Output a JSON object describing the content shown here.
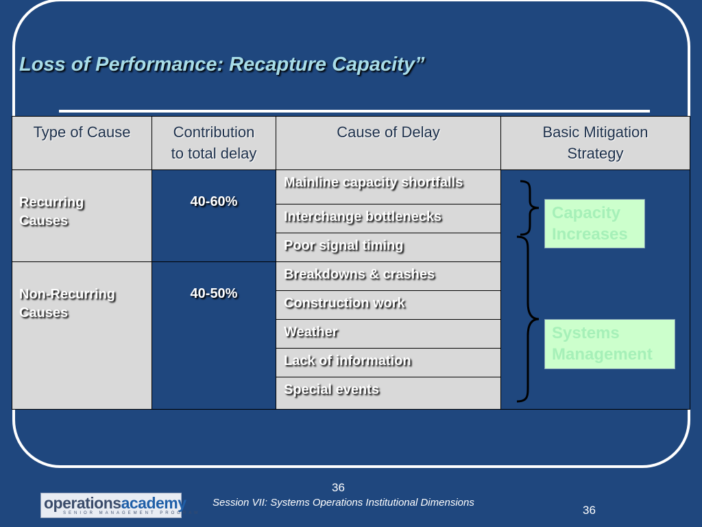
{
  "slide": {
    "title": "Loss of Performance: Recapture Capacity”",
    "table": {
      "headers": {
        "type_of_cause": "Type of Cause",
        "contribution_line1": "Contribution",
        "contribution_line2": "to total delay",
        "cause_of_delay": "Cause of Delay",
        "mitigation_line1": "Basic Mitigation",
        "mitigation_line2": "Strategy"
      },
      "groups": [
        {
          "name_line1": "Recurring",
          "name_line2": "Causes",
          "contribution": "40-60%"
        },
        {
          "name_line1": "Non-Recurring",
          "name_line2": "Causes",
          "contribution": "40-50%"
        }
      ],
      "causes": [
        "Mainline capacity shortfalls",
        "Interchange bottlenecks",
        "Poor signal timing",
        "Breakdowns & crashes",
        "Construction work",
        "Weather",
        "Lack of information",
        "Special events"
      ],
      "strategies": [
        {
          "line1": "Capacity",
          "line2": "Increases"
        },
        {
          "line1": "Systems",
          "line2": "Management"
        }
      ]
    },
    "colors": {
      "background": "#1f477e",
      "header_fill": "#d9d9d9",
      "strategy_fill": "#ccffcc",
      "title_text": "#a8dde8"
    }
  },
  "footer": {
    "logo_word_main": "operations",
    "logo_word_accent": "academy",
    "logo_subtitle": "SENIOR MANAGEMENT PROGRAM",
    "session_text": "Session VII: Systems Operations Institutional Dimensions",
    "page_number_center": "36",
    "page_number_right": "36"
  }
}
